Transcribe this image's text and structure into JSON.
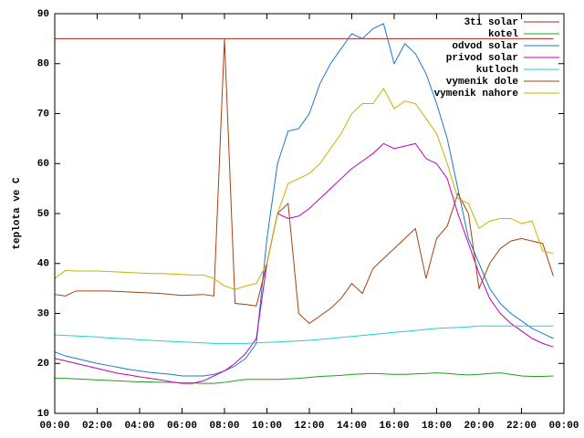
{
  "chart_data": {
    "type": "line",
    "y_label": "teplota ve C",
    "x": [
      0,
      0.5,
      1,
      1.5,
      2,
      2.5,
      3,
      3.5,
      4,
      4.5,
      5,
      5.5,
      6,
      6.5,
      7,
      7.5,
      8,
      8.5,
      9,
      9.5,
      10,
      10.5,
      11,
      11.5,
      12,
      12.5,
      13,
      13.5,
      14,
      14.5,
      15,
      15.5,
      16,
      16.5,
      17,
      17.5,
      18,
      18.5,
      19,
      19.5,
      20,
      20.5,
      21,
      21.5,
      22,
      22.5,
      23,
      23.5
    ],
    "xlim": [
      0,
      24
    ],
    "xticks": [
      {
        "value": 0,
        "label": "00:00"
      },
      {
        "value": 2,
        "label": "02:00"
      },
      {
        "value": 4,
        "label": "04:00"
      },
      {
        "value": 6,
        "label": "06:00"
      },
      {
        "value": 8,
        "label": "08:00"
      },
      {
        "value": 10,
        "label": "10:00"
      },
      {
        "value": 12,
        "label": "12:00"
      },
      {
        "value": 14,
        "label": "14:00"
      },
      {
        "value": 16,
        "label": "16:00"
      },
      {
        "value": 18,
        "label": "18:00"
      },
      {
        "value": 20,
        "label": "20:00"
      },
      {
        "value": 22,
        "label": "22:00"
      },
      {
        "value": 24,
        "label": "00:00"
      }
    ],
    "ylim": [
      10,
      90
    ],
    "yticks": [
      10,
      20,
      30,
      40,
      50,
      60,
      70,
      80,
      90
    ],
    "grid": false,
    "legend": "top-right",
    "series": [
      {
        "name": "3ti solar",
        "color": "#b22222",
        "values": [
          85,
          85,
          85,
          85,
          85,
          85,
          85,
          85,
          85,
          85,
          85,
          85,
          85,
          85,
          85,
          85,
          85,
          85,
          85,
          85,
          85,
          85,
          85,
          85,
          85,
          85,
          85,
          85,
          85,
          85,
          85,
          85,
          85,
          85,
          85,
          85,
          85,
          85,
          85,
          85,
          85,
          85,
          85,
          85,
          85,
          85,
          85,
          85
        ]
      },
      {
        "name": "kotel",
        "color": "#1ea01e",
        "values": [
          17,
          17,
          16.9,
          16.8,
          16.7,
          16.6,
          16.5,
          16.4,
          16.3,
          16.3,
          16.2,
          16.2,
          16.1,
          16.1,
          16,
          16,
          16.2,
          16.5,
          16.8,
          16.8,
          16.8,
          16.8,
          16.9,
          17,
          17.2,
          17.4,
          17.5,
          17.6,
          17.8,
          17.9,
          18,
          17.9,
          17.8,
          17.8,
          17.9,
          18,
          18.1,
          18,
          17.8,
          17.7,
          17.8,
          18,
          18.1,
          17.8,
          17.5,
          17.4,
          17.4,
          17.5
        ]
      },
      {
        "name": "odvod solar",
        "color": "#1e78d2",
        "values": [
          22.3,
          21.5,
          21,
          20.5,
          20,
          19.6,
          19.2,
          18.8,
          18.5,
          18.2,
          18,
          17.8,
          17.5,
          17.5,
          17.5,
          17.8,
          18.5,
          19.5,
          21,
          24,
          45,
          60,
          66.5,
          67,
          70,
          76,
          80,
          83,
          86,
          85,
          87,
          88,
          80,
          84,
          82,
          78,
          72,
          65,
          55,
          45,
          40,
          35,
          32,
          30,
          28.5,
          27,
          26,
          25
        ]
      },
      {
        "name": "privod solar",
        "color": "#c000c0",
        "values": [
          21,
          20.5,
          20,
          19.5,
          19,
          18.5,
          18,
          17.7,
          17.3,
          17,
          16.7,
          16.3,
          16,
          16,
          16.5,
          17.5,
          18.5,
          20,
          22,
          25,
          40,
          50,
          49,
          49.5,
          51,
          53,
          55,
          57,
          59,
          60.5,
          62,
          64,
          63,
          63.5,
          64,
          61,
          60,
          57,
          50,
          44,
          38,
          33,
          30,
          28,
          26.5,
          25,
          24,
          23.3
        ]
      },
      {
        "name": "kutloch",
        "color": "#20d0d0",
        "values": [
          25.7,
          25.6,
          25.5,
          25.4,
          25.3,
          25.1,
          25,
          24.9,
          24.7,
          24.6,
          24.5,
          24.4,
          24.3,
          24.2,
          24.1,
          24,
          24,
          24,
          24,
          24.1,
          24.2,
          24.3,
          24.4,
          24.5,
          24.6,
          24.8,
          25,
          25.2,
          25.4,
          25.6,
          25.8,
          26,
          26.2,
          26.4,
          26.6,
          26.8,
          27,
          27.1,
          27.2,
          27.3,
          27.5,
          27.5,
          27.5,
          27.5,
          27.5,
          27.5,
          27.5,
          27.5
        ]
      },
      {
        "name": "vymenik dole",
        "color": "#a84010",
        "values": [
          33.8,
          33.5,
          34.5,
          34.5,
          34.5,
          34.5,
          34.4,
          34.3,
          34.2,
          34.1,
          34,
          33.8,
          33.6,
          33.7,
          33.8,
          33.5,
          85,
          32,
          31.8,
          31.5,
          40,
          50,
          52,
          30,
          28,
          29.5,
          31,
          33,
          36,
          34,
          39,
          41,
          43,
          45,
          47,
          37,
          45,
          47.5,
          54,
          50,
          35,
          40,
          43,
          44.5,
          45,
          44.5,
          44,
          37.5
        ]
      },
      {
        "name": "vymenik nahore",
        "color": "#c8b400",
        "values": [
          37,
          38.6,
          38.5,
          38.5,
          38.5,
          38.4,
          38.3,
          38.2,
          38.1,
          38,
          38,
          37.9,
          37.8,
          37.7,
          37.7,
          37,
          35.5,
          34.8,
          35.5,
          36,
          40,
          50,
          56,
          57,
          58,
          60,
          63,
          66,
          70,
          72,
          72,
          75,
          71,
          72.5,
          72,
          69,
          66,
          60,
          53,
          52,
          47,
          48.5,
          49,
          49,
          48,
          48.5,
          42.5,
          42
        ]
      }
    ]
  }
}
